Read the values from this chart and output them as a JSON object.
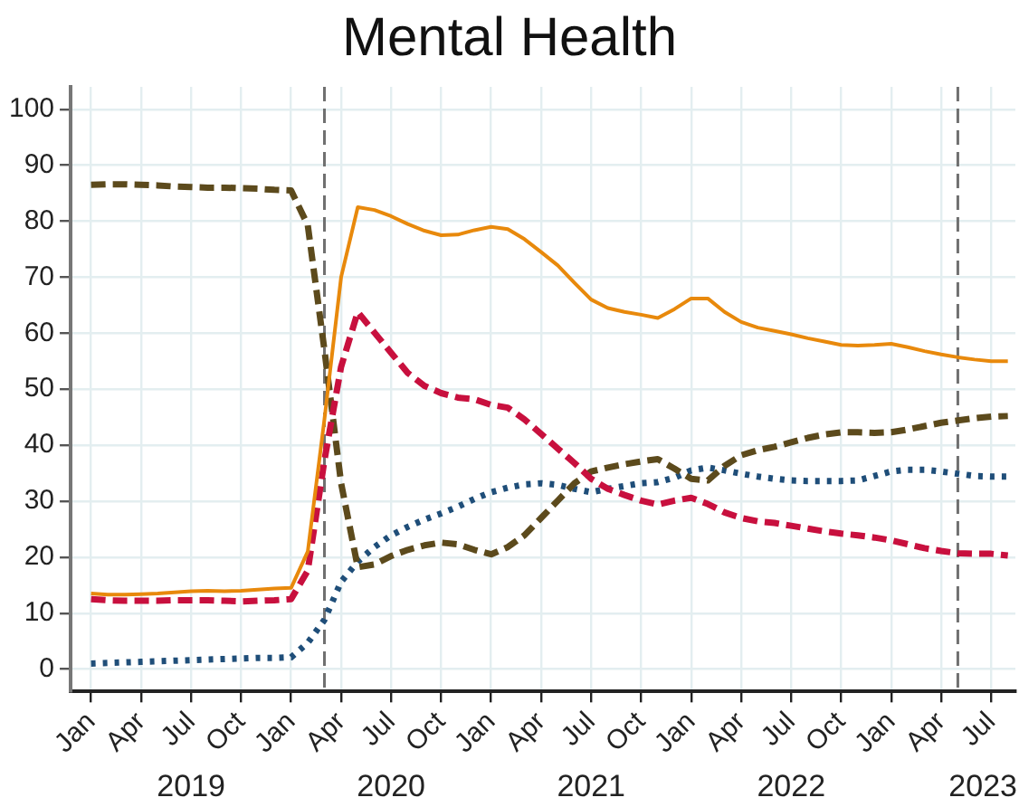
{
  "chart_data": {
    "type": "line",
    "title": "Mental Health",
    "x": [
      "2019-01",
      "2019-02",
      "2019-03",
      "2019-04",
      "2019-05",
      "2019-06",
      "2019-07",
      "2019-08",
      "2019-09",
      "2019-10",
      "2019-11",
      "2019-12",
      "2020-01",
      "2020-02",
      "2020-03",
      "2020-04",
      "2020-05",
      "2020-06",
      "2020-07",
      "2020-08",
      "2020-09",
      "2020-10",
      "2020-11",
      "2020-12",
      "2021-01",
      "2021-02",
      "2021-03",
      "2021-04",
      "2021-05",
      "2021-06",
      "2021-07",
      "2021-08",
      "2021-09",
      "2021-10",
      "2021-11",
      "2021-12",
      "2022-01",
      "2022-02",
      "2022-03",
      "2022-04",
      "2022-05",
      "2022-06",
      "2022-07",
      "2022-08",
      "2022-09",
      "2022-10",
      "2022-11",
      "2022-12",
      "2023-01",
      "2023-02",
      "2023-03",
      "2023-04",
      "2023-05",
      "2023-06",
      "2023-07",
      "2023-08"
    ],
    "series": [
      {
        "color": "#e8890c",
        "line_style": "solid",
        "values": [
          13.5,
          13.3,
          13.3,
          13.4,
          13.5,
          13.7,
          13.9,
          14,
          13.9,
          14,
          14.2,
          14.4,
          14.5,
          21,
          44.6,
          70,
          82.5,
          82,
          80.9,
          79.5,
          78.3,
          77.5,
          77.6,
          78.4,
          79,
          78.6,
          76.8,
          74.5,
          72.1,
          69,
          66,
          64.5,
          63.8,
          63.3,
          62.7,
          64.3,
          66.2,
          66.2,
          63.8,
          62,
          61,
          60.4,
          59.8,
          59.1,
          58.5,
          57.9,
          57.8,
          57.9,
          58.1,
          57.5,
          56.8,
          56.2,
          55.7,
          55.3,
          55,
          55
        ]
      },
      {
        "color": "#c8103e",
        "line_style": "dashed",
        "values": [
          12.5,
          12.3,
          12.2,
          12.2,
          12.2,
          12.3,
          12.3,
          12.3,
          12.2,
          12.1,
          12.2,
          12.3,
          12.5,
          17.6,
          37.3,
          54,
          63.8,
          60.1,
          56.5,
          52.9,
          50.6,
          49.3,
          48.5,
          48.2,
          47.2,
          46.7,
          44.6,
          42,
          39.4,
          36.8,
          34,
          32.2,
          31.1,
          30.1,
          29.4,
          30.1,
          30.6,
          29.5,
          28,
          27,
          26.4,
          26.1,
          25.6,
          25.1,
          24.6,
          24.2,
          23.9,
          23.5,
          23,
          22.3,
          21.6,
          21.1,
          20.7,
          20.6,
          20.6,
          20.3
        ]
      },
      {
        "color": "#5c4a1c",
        "line_style": "dashed",
        "values": [
          86.5,
          86.6,
          86.6,
          86.5,
          86.4,
          86.2,
          86.1,
          86,
          86,
          85.9,
          85.8,
          85.6,
          85.5,
          79.3,
          57,
          33.2,
          18.2,
          18.7,
          20.2,
          21.3,
          22.1,
          22.6,
          22.3,
          21.3,
          20.5,
          21.8,
          23.9,
          27,
          30.1,
          33.2,
          35.3,
          36,
          36.6,
          37.1,
          37.5,
          35.8,
          34,
          33.7,
          36.3,
          38.2,
          39.1,
          39.7,
          40.5,
          41.3,
          41.9,
          42.3,
          42.3,
          42.2,
          42.3,
          42.8,
          43.4,
          44,
          44.4,
          44.8,
          45.1,
          45.2
        ]
      },
      {
        "color": "#1f4e79",
        "line_style": "dotted",
        "values": [
          1,
          1.1,
          1.2,
          1.3,
          1.4,
          1.5,
          1.6,
          1.7,
          1.8,
          1.9,
          2,
          2,
          2.1,
          4.7,
          8.8,
          15.6,
          19.2,
          21.8,
          23.9,
          25.4,
          26.7,
          27.8,
          29,
          30.4,
          31.6,
          32.4,
          33,
          33.2,
          32.9,
          32.2,
          31.6,
          32.2,
          32.7,
          33.2,
          33.4,
          34.2,
          35.5,
          36,
          35.5,
          34.9,
          34.4,
          34,
          33.7,
          33.6,
          33.6,
          33.6,
          33.7,
          34.5,
          35.3,
          35.6,
          35.6,
          35.3,
          34.9,
          34.5,
          34.4,
          34.4
        ]
      }
    ],
    "xlim": [
      "2018-11-25",
      "2023-08-15"
    ],
    "xticks": [
      {
        "value": "2019-01",
        "label": "Jan"
      },
      {
        "value": "2019-04",
        "label": "Apr"
      },
      {
        "value": "2019-07",
        "label": "Jul"
      },
      {
        "value": "2019-10",
        "label": "Oct"
      },
      {
        "value": "2020-01",
        "label": "Jan"
      },
      {
        "value": "2020-04",
        "label": "Apr"
      },
      {
        "value": "2020-07",
        "label": "Jul"
      },
      {
        "value": "2020-10",
        "label": "Oct"
      },
      {
        "value": "2021-01",
        "label": "Jan"
      },
      {
        "value": "2021-04",
        "label": "Apr"
      },
      {
        "value": "2021-07",
        "label": "Jul"
      },
      {
        "value": "2021-10",
        "label": "Oct"
      },
      {
        "value": "2022-01",
        "label": "Jan"
      },
      {
        "value": "2022-04",
        "label": "Apr"
      },
      {
        "value": "2022-07",
        "label": "Jul"
      },
      {
        "value": "2022-10",
        "label": "Oct"
      },
      {
        "value": "2023-01",
        "label": "Jan"
      },
      {
        "value": "2023-04",
        "label": "Apr"
      },
      {
        "value": "2023-07",
        "label": "Jul"
      }
    ],
    "ylim": [
      -4,
      104
    ],
    "yticks": [
      0,
      10,
      20,
      30,
      40,
      50,
      60,
      70,
      80,
      90,
      100
    ],
    "grid": true,
    "legend": false,
    "marker": "none",
    "ref_lines": [
      {
        "axis": "x",
        "value": "2020-03",
        "color": "#707070",
        "line_style": "dashed"
      },
      {
        "axis": "x",
        "value": "2023-05",
        "color": "#707070",
        "line_style": "dashed"
      }
    ],
    "annotations": [
      "2019",
      "2020",
      "2021",
      "2022",
      "2023"
    ]
  }
}
